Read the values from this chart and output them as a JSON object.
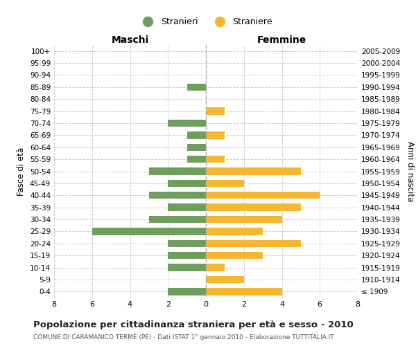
{
  "age_groups": [
    "100+",
    "95-99",
    "90-94",
    "85-89",
    "80-84",
    "75-79",
    "70-74",
    "65-69",
    "60-64",
    "55-59",
    "50-54",
    "45-49",
    "40-44",
    "35-39",
    "30-34",
    "25-29",
    "20-24",
    "15-19",
    "10-14",
    "5-9",
    "0-4"
  ],
  "birth_years": [
    "≤ 1909",
    "1910-1914",
    "1915-1919",
    "1920-1924",
    "1925-1929",
    "1930-1934",
    "1935-1939",
    "1940-1944",
    "1945-1949",
    "1950-1954",
    "1955-1959",
    "1960-1964",
    "1965-1969",
    "1970-1974",
    "1975-1979",
    "1980-1984",
    "1985-1989",
    "1990-1994",
    "1995-1999",
    "2000-2004",
    "2005-2009"
  ],
  "maschi": [
    0,
    0,
    0,
    1,
    0,
    0,
    2,
    1,
    1,
    1,
    3,
    2,
    3,
    2,
    3,
    6,
    2,
    2,
    2,
    0,
    2
  ],
  "femmine": [
    0,
    0,
    0,
    0,
    0,
    1,
    0,
    1,
    0,
    1,
    5,
    2,
    6,
    5,
    4,
    3,
    5,
    3,
    1,
    2,
    4
  ],
  "maschi_color": "#6d9e5e",
  "femmine_color": "#f5b731",
  "background_color": "#ffffff",
  "grid_color": "#cccccc",
  "title": "Popolazione per cittadinanza straniera per età e sesso - 2010",
  "subtitle": "COMUNE DI CARAMANICO TERME (PE) - Dati ISTAT 1° gennaio 2010 - Elaborazione TUTTITALIA.IT",
  "xlabel_left": "Maschi",
  "xlabel_right": "Femmine",
  "ylabel_left": "Fasce di età",
  "ylabel_right": "Anni di nascita",
  "legend_maschi": "Stranieri",
  "legend_femmine": "Straniere",
  "xlim": 8,
  "center_line_color": "#aaaaaa"
}
